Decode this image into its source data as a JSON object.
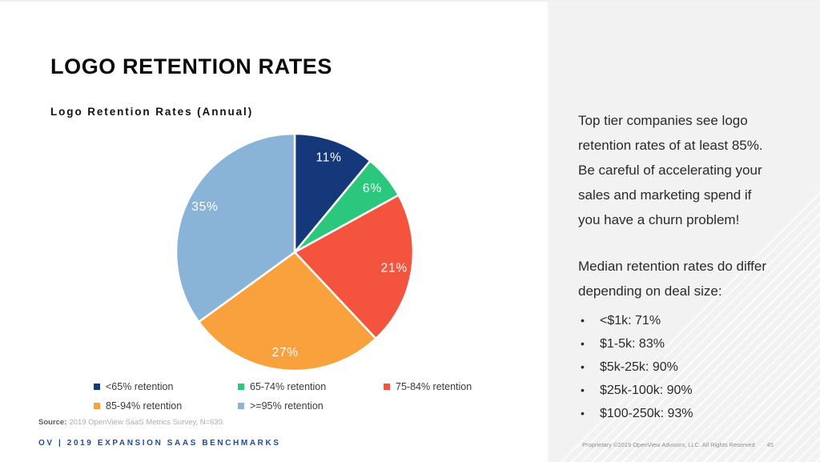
{
  "slide": {
    "title": "LOGO RETENTION RATES",
    "source_label": "Source:",
    "source_text": "2019 OpenView SaaS Metrics Survey, N=639.",
    "footer_left": "OV | 2019 EXPANSION SAAS BENCHMARKS",
    "footer_right": "Proprietary ©2019 OpenView Advisors, LLC. All Rights Reserved",
    "page_number": "45"
  },
  "chart_data": {
    "type": "pie",
    "title": "Logo Retention Rates (Annual)",
    "direction": "clockwise",
    "start_angle_deg": 0,
    "legend_position": "bottom",
    "slices": [
      {
        "label": "<65% retention",
        "value": 11,
        "display": "11%",
        "color": "#15387b"
      },
      {
        "label": "65-74% retention",
        "value": 6,
        "display": "6%",
        "color": "#2bc77d"
      },
      {
        "label": "75-84% retention",
        "value": 21,
        "display": "21%",
        "color": "#f4533d"
      },
      {
        "label": "85-94% retention",
        "value": 27,
        "display": "27%",
        "color": "#f9a13c"
      },
      {
        "label": ">=95% retention",
        "value": 35,
        "display": "35%",
        "color": "#8ab3d8"
      }
    ]
  },
  "panel": {
    "paragraph1": "Top tier companies see logo\nretention rates of at least 85%.\nBe careful of accelerating your\nsales and marketing spend if\nyou have a churn problem!",
    "paragraph2": "Median retention rates do differ\ndepending on deal size:",
    "bullets": [
      "<$1k: 71%",
      "$1-5k: 83%",
      "$5k-25k: 90%",
      "$25k-100k: 90%",
      "$100-250k: 93%"
    ]
  }
}
